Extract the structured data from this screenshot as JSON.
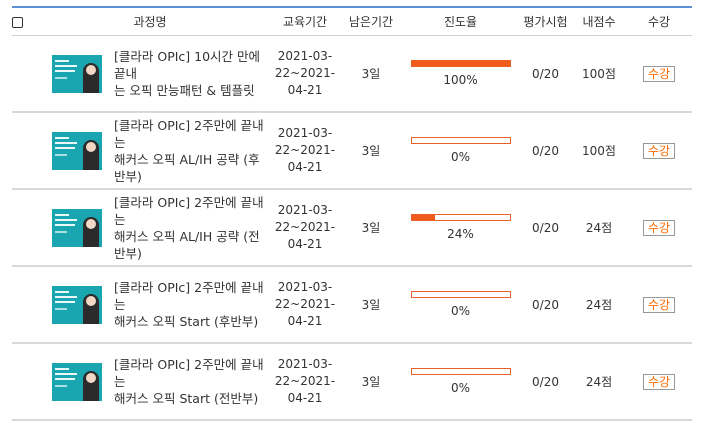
{
  "header": {
    "course": "과정명",
    "period": "교육기간",
    "remaining": "남은기간",
    "progress": "진도율",
    "exam": "평가시험",
    "score": "내점수",
    "attend": "수강"
  },
  "rows": [
    {
      "title_line1": "[클라라 OPIc] 10시간 만에 끝내",
      "title_line2": "는 오픽 만능패턴 & 템플릿",
      "date_line1": "2021-03-",
      "date_line2": "22~2021-",
      "date_line3": "04-21",
      "remaining": "3일",
      "progress_pct": 100,
      "progress_label": "100%",
      "exam": "0/20",
      "score": "100점",
      "button": "수강"
    },
    {
      "title_line1": "[클라라 OPIc] 2주만에 끝내는",
      "title_line2": "해커스 오픽 AL/IH 공략 (후반부)",
      "date_line1": "2021-03-",
      "date_line2": "22~2021-",
      "date_line3": "04-21",
      "remaining": "3일",
      "progress_pct": 0,
      "progress_label": "0%",
      "exam": "0/20",
      "score": "100점",
      "button": "수강"
    },
    {
      "title_line1": "[클라라 OPIc] 2주만에 끝내는",
      "title_line2": "해커스 오픽 AL/IH 공략 (전반부)",
      "date_line1": "2021-03-",
      "date_line2": "22~2021-",
      "date_line3": "04-21",
      "remaining": "3일",
      "progress_pct": 24,
      "progress_label": "24%",
      "exam": "0/20",
      "score": "24점",
      "button": "수강"
    },
    {
      "title_line1": "[클라라 OPIc] 2주만에 끝내는",
      "title_line2": "해커스 오픽 Start (후반부)",
      "date_line1": "2021-03-",
      "date_line2": "22~2021-",
      "date_line3": "04-21",
      "remaining": "3일",
      "progress_pct": 0,
      "progress_label": "0%",
      "exam": "0/20",
      "score": "24점",
      "button": "수강"
    },
    {
      "title_line1": "[클라라 OPIc] 2주만에 끝내는",
      "title_line2": "해커스 오픽 Start (전반부)",
      "date_line1": "2021-03-",
      "date_line2": "22~2021-",
      "date_line3": "04-21",
      "remaining": "3일",
      "progress_pct": 0,
      "progress_label": "0%",
      "exam": "0/20",
      "score": "24점",
      "button": "수강"
    }
  ],
  "colors": {
    "header_line": "#5b8fd6",
    "progress_fill": "#f05a1a",
    "button_text": "#ff6a00",
    "thumbnail": "#1aa6b0"
  }
}
